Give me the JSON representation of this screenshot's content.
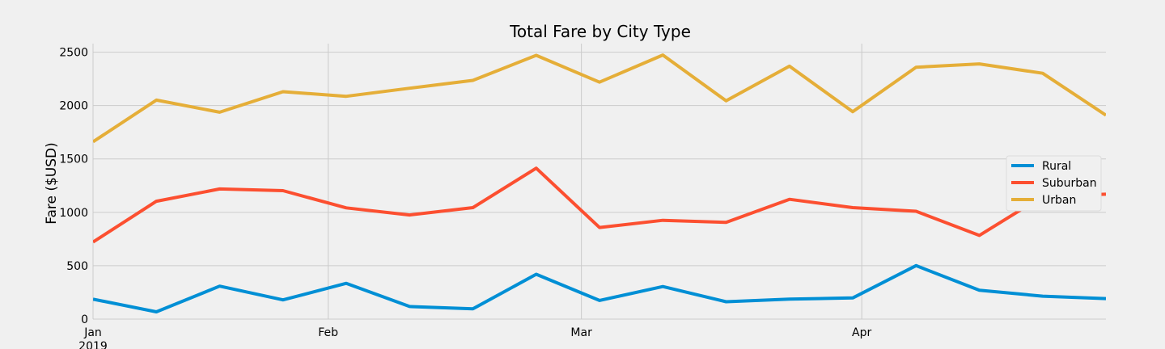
{
  "chart_data": {
    "type": "line",
    "title": "Total Fare by City Type",
    "xlabel": "",
    "ylabel": "Fare ($USD)",
    "ylim": [
      0,
      2580
    ],
    "xlim": [
      "2019-01-06",
      "2019-04-28"
    ],
    "x": [
      "2019-01-06",
      "2019-01-13",
      "2019-01-20",
      "2019-01-27",
      "2019-02-03",
      "2019-02-10",
      "2019-02-17",
      "2019-02-24",
      "2019-03-03",
      "2019-03-10",
      "2019-03-17",
      "2019-03-24",
      "2019-03-31",
      "2019-04-07",
      "2019-04-14",
      "2019-04-21",
      "2019-04-28"
    ],
    "x_ticks": [
      {
        "date": "2019-01-06",
        "label": "Jan",
        "sublabel": "2019"
      },
      {
        "date": "2019-02-01",
        "label": "Feb",
        "sublabel": ""
      },
      {
        "date": "2019-03-01",
        "label": "Mar",
        "sublabel": ""
      },
      {
        "date": "2019-04-01",
        "label": "Apr",
        "sublabel": ""
      }
    ],
    "y_ticks": [
      0,
      500,
      1000,
      1500,
      2000,
      2500
    ],
    "grid": true,
    "legend_position": "center-right",
    "series": [
      {
        "name": "Rural",
        "color": "#008fd5",
        "values": [
          187,
          68,
          309,
          180,
          335,
          118,
          96,
          420,
          175,
          305,
          163,
          188,
          198,
          501,
          271,
          215,
          192
        ]
      },
      {
        "name": "Suburban",
        "color": "#fc4f30",
        "values": [
          722,
          1104,
          1219,
          1203,
          1042,
          975,
          1044,
          1413,
          858,
          925,
          906,
          1122,
          1044,
          1010,
          784,
          1150,
          1170
        ]
      },
      {
        "name": "Urban",
        "color": "#e5ae38",
        "values": [
          1661,
          2051,
          1938,
          2130,
          2087,
          2162,
          2236,
          2470,
          2219,
          2473,
          2044,
          2369,
          1942,
          2359,
          2390,
          2302,
          1910
        ]
      }
    ]
  }
}
